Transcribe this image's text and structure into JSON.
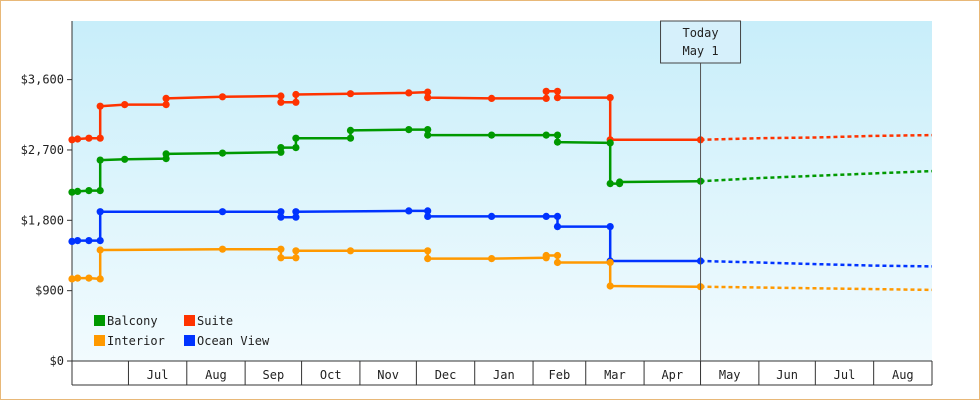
{
  "chart_data": {
    "type": "line",
    "title": "",
    "xlabel": "",
    "ylabel": "",
    "ylim": [
      0,
      4350
    ],
    "y_ticks": [
      {
        "value": 0,
        "label": "$0"
      },
      {
        "value": 900,
        "label": "$900"
      },
      {
        "value": 1800,
        "label": "$1,800"
      },
      {
        "value": 2700,
        "label": "$2,700"
      },
      {
        "value": 3600,
        "label": "$3,600"
      }
    ],
    "x_start": "2013-06-01",
    "x_end": "2014-09-01",
    "x_months": [
      {
        "date": "2013-06-01",
        "label": ""
      },
      {
        "date": "2013-07-01",
        "label": "Jul"
      },
      {
        "date": "2013-08-01",
        "label": "Aug"
      },
      {
        "date": "2013-09-01",
        "label": "Sep"
      },
      {
        "date": "2013-10-01",
        "label": "Oct"
      },
      {
        "date": "2013-11-01",
        "label": "Nov"
      },
      {
        "date": "2013-12-01",
        "label": "Dec"
      },
      {
        "date": "2014-01-01",
        "label": "Jan"
      },
      {
        "date": "2014-02-01",
        "label": "Feb"
      },
      {
        "date": "2014-03-01",
        "label": "Mar"
      },
      {
        "date": "2014-04-01",
        "label": "Apr"
      },
      {
        "date": "2014-05-01",
        "label": "May"
      },
      {
        "date": "2014-06-01",
        "label": "Jun"
      },
      {
        "date": "2014-07-01",
        "label": "Jul"
      },
      {
        "date": "2014-08-01",
        "label": "Aug"
      },
      {
        "date": "2014-09-01",
        "label": ""
      }
    ],
    "today": {
      "date": "2014-05-01",
      "label_line1": "Today",
      "label_line2": "May 1"
    },
    "legend": {
      "placement": "bottom-left"
    },
    "grid": false,
    "series": [
      {
        "name": "Suite",
        "color": "#ff3300",
        "points": [
          [
            "2013-06-01",
            2830
          ],
          [
            "2013-06-04",
            2840
          ],
          [
            "2013-06-10",
            2850
          ],
          [
            "2013-06-16",
            2850
          ],
          [
            "2013-06-16",
            3260
          ],
          [
            "2013-06-29",
            3280
          ],
          [
            "2013-07-21",
            3280
          ],
          [
            "2013-07-21",
            3360
          ],
          [
            "2013-08-20",
            3380
          ],
          [
            "2013-09-20",
            3390
          ],
          [
            "2013-09-20",
            3310
          ],
          [
            "2013-09-28",
            3310
          ],
          [
            "2013-09-28",
            3410
          ],
          [
            "2013-10-27",
            3420
          ],
          [
            "2013-11-27",
            3430
          ],
          [
            "2013-12-07",
            3440
          ],
          [
            "2013-12-07",
            3370
          ],
          [
            "2014-01-10",
            3360
          ],
          [
            "2014-02-08",
            3360
          ],
          [
            "2014-02-08",
            3450
          ],
          [
            "2014-02-14",
            3450
          ],
          [
            "2014-02-14",
            3370
          ],
          [
            "2014-03-14",
            3370
          ],
          [
            "2014-03-14",
            2830
          ],
          [
            "2014-05-01",
            2830
          ]
        ],
        "projection": [
          [
            "2014-05-01",
            2830
          ],
          [
            "2014-06-01",
            2850
          ],
          [
            "2014-07-01",
            2860
          ],
          [
            "2014-08-01",
            2880
          ],
          [
            "2014-09-01",
            2890
          ]
        ]
      },
      {
        "name": "Balcony",
        "color": "#009900",
        "points": [
          [
            "2013-06-01",
            2160
          ],
          [
            "2013-06-04",
            2170
          ],
          [
            "2013-06-10",
            2180
          ],
          [
            "2013-06-16",
            2180
          ],
          [
            "2013-06-16",
            2570
          ],
          [
            "2013-06-29",
            2580
          ],
          [
            "2013-07-21",
            2590
          ],
          [
            "2013-07-21",
            2650
          ],
          [
            "2013-08-20",
            2660
          ],
          [
            "2013-09-20",
            2670
          ],
          [
            "2013-09-20",
            2730
          ],
          [
            "2013-09-28",
            2730
          ],
          [
            "2013-09-28",
            2850
          ],
          [
            "2013-10-27",
            2850
          ],
          [
            "2013-10-27",
            2950
          ],
          [
            "2013-11-27",
            2960
          ],
          [
            "2013-12-07",
            2960
          ],
          [
            "2013-12-07",
            2890
          ],
          [
            "2014-01-10",
            2890
          ],
          [
            "2014-02-08",
            2890
          ],
          [
            "2014-02-14",
            2890
          ],
          [
            "2014-02-14",
            2800
          ],
          [
            "2014-03-14",
            2790
          ],
          [
            "2014-03-14",
            2270
          ],
          [
            "2014-03-19",
            2270
          ],
          [
            "2014-03-19",
            2290
          ],
          [
            "2014-05-01",
            2300
          ]
        ],
        "projection": [
          [
            "2014-05-01",
            2300
          ],
          [
            "2014-06-01",
            2340
          ],
          [
            "2014-07-01",
            2370
          ],
          [
            "2014-08-01",
            2400
          ],
          [
            "2014-09-01",
            2430
          ]
        ]
      },
      {
        "name": "Ocean View",
        "color": "#0033ff",
        "points": [
          [
            "2013-06-01",
            1530
          ],
          [
            "2013-06-04",
            1540
          ],
          [
            "2013-06-10",
            1540
          ],
          [
            "2013-06-16",
            1540
          ],
          [
            "2013-06-16",
            1910
          ],
          [
            "2013-08-20",
            1910
          ],
          [
            "2013-09-20",
            1910
          ],
          [
            "2013-09-20",
            1840
          ],
          [
            "2013-09-28",
            1840
          ],
          [
            "2013-09-28",
            1910
          ],
          [
            "2013-11-27",
            1920
          ],
          [
            "2013-12-07",
            1920
          ],
          [
            "2013-12-07",
            1850
          ],
          [
            "2014-01-10",
            1850
          ],
          [
            "2014-02-08",
            1850
          ],
          [
            "2014-02-14",
            1850
          ],
          [
            "2014-02-14",
            1720
          ],
          [
            "2014-03-14",
            1720
          ],
          [
            "2014-03-14",
            1280
          ],
          [
            "2014-05-01",
            1280
          ]
        ],
        "projection": [
          [
            "2014-05-01",
            1280
          ],
          [
            "2014-06-01",
            1260
          ],
          [
            "2014-07-01",
            1240
          ],
          [
            "2014-08-01",
            1220
          ],
          [
            "2014-09-01",
            1210
          ]
        ]
      },
      {
        "name": "Interior",
        "color": "#ff9900",
        "points": [
          [
            "2013-06-01",
            1050
          ],
          [
            "2013-06-04",
            1060
          ],
          [
            "2013-06-10",
            1060
          ],
          [
            "2013-06-16",
            1050
          ],
          [
            "2013-06-16",
            1420
          ],
          [
            "2013-08-20",
            1430
          ],
          [
            "2013-09-20",
            1430
          ],
          [
            "2013-09-20",
            1320
          ],
          [
            "2013-09-28",
            1320
          ],
          [
            "2013-09-28",
            1410
          ],
          [
            "2013-10-27",
            1410
          ],
          [
            "2013-12-07",
            1410
          ],
          [
            "2013-12-07",
            1310
          ],
          [
            "2014-01-10",
            1310
          ],
          [
            "2014-02-08",
            1320
          ],
          [
            "2014-02-08",
            1350
          ],
          [
            "2014-02-14",
            1350
          ],
          [
            "2014-02-14",
            1260
          ],
          [
            "2014-03-14",
            1260
          ],
          [
            "2014-03-14",
            960
          ],
          [
            "2014-05-01",
            950
          ]
        ],
        "projection": [
          [
            "2014-05-01",
            950
          ],
          [
            "2014-06-01",
            940
          ],
          [
            "2014-07-01",
            930
          ],
          [
            "2014-08-01",
            920
          ],
          [
            "2014-09-01",
            910
          ]
        ]
      }
    ]
  }
}
